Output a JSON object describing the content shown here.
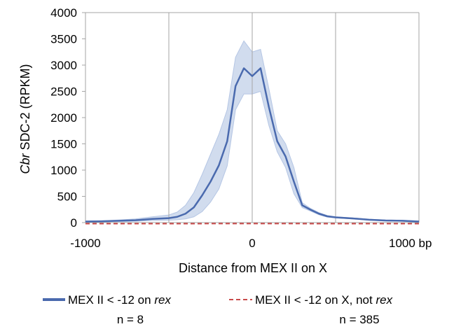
{
  "chart_data": {
    "type": "line",
    "xlabel": "Distance from MEX II on X",
    "ylabel_italic": "Cbr",
    "ylabel_rest": " SDC-2 (RPKM)",
    "xlim": [
      -1000,
      1000
    ],
    "ylim": [
      0,
      4000
    ],
    "x_ticks": [
      {
        "value": -1000,
        "label": "-1000"
      },
      {
        "value": 0,
        "label": "0"
      },
      {
        "value": 1000,
        "label": "1000 bp"
      }
    ],
    "y_ticks": [
      {
        "value": 0,
        "label": "0"
      },
      {
        "value": 500,
        "label": "500"
      },
      {
        "value": 1000,
        "label": "1000"
      },
      {
        "value": 1500,
        "label": "1500"
      },
      {
        "value": 2000,
        "label": "2000"
      },
      {
        "value": 2500,
        "label": "2500"
      },
      {
        "value": 3000,
        "label": "3000"
      },
      {
        "value": 3500,
        "label": "3500"
      },
      {
        "value": 4000,
        "label": "4000"
      }
    ],
    "grid": {
      "vertical_at": [
        -500,
        0,
        500
      ],
      "horizontal": false
    },
    "series": [
      {
        "legend_prefix": "MEX II < -12 on ",
        "legend_italic": "rex",
        "legend_suffix": "",
        "count_label": "n = 8",
        "color": "#4a6aae",
        "style": "solid",
        "x": [
          -1000,
          -900,
          -800,
          -700,
          -600,
          -500,
          -450,
          -400,
          -350,
          -300,
          -250,
          -200,
          -150,
          -100,
          -50,
          0,
          50,
          100,
          150,
          200,
          250,
          300,
          350,
          400,
          450,
          500,
          600,
          700,
          800,
          900,
          1000
        ],
        "y": [
          20,
          25,
          35,
          45,
          70,
          85,
          110,
          170,
          290,
          520,
          780,
          1090,
          1550,
          2600,
          2940,
          2790,
          2940,
          2200,
          1550,
          1260,
          780,
          330,
          245,
          170,
          120,
          100,
          80,
          55,
          40,
          35,
          20
        ],
        "upper": [
          30,
          35,
          50,
          70,
          110,
          145,
          200,
          330,
          570,
          920,
          1300,
          1680,
          2150,
          3150,
          3460,
          3250,
          3300,
          2550,
          1750,
          1500,
          1050,
          380,
          270,
          190,
          135,
          110,
          90,
          65,
          50,
          45,
          30
        ],
        "lower": [
          10,
          15,
          20,
          25,
          40,
          45,
          55,
          70,
          110,
          210,
          390,
          640,
          1080,
          2150,
          2450,
          2450,
          2500,
          1850,
          1350,
          1050,
          550,
          285,
          220,
          150,
          105,
          90,
          70,
          45,
          30,
          25,
          10
        ]
      },
      {
        "legend_prefix": "MEX II < -12 on X, not ",
        "legend_italic": "rex",
        "legend_suffix": "",
        "count_label": "n = 385",
        "color": "#c94a4a",
        "style": "dashed",
        "x": [
          -1000,
          -500,
          0,
          500,
          1000
        ],
        "y": [
          -20,
          -20,
          -18,
          -20,
          -20
        ]
      }
    ],
    "band_color": "#c9d6ec"
  }
}
